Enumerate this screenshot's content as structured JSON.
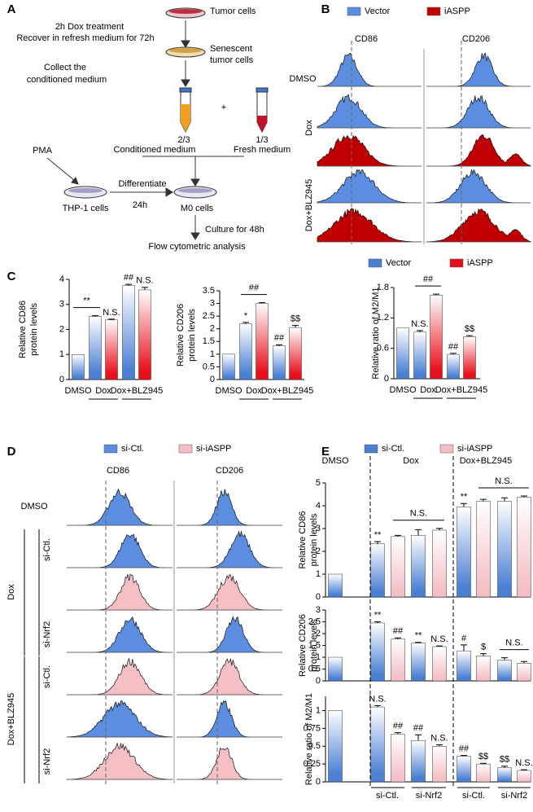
{
  "panel_labels": [
    "A",
    "B",
    "C",
    "D",
    "E"
  ],
  "panel_a": {
    "texts": [
      "Tumor cells",
      "2h Dox treatment",
      "Recover in refresh medium for 72h",
      "Senescent",
      "tumor cells",
      "Collect the",
      "conditioned medium",
      "+",
      "2/3",
      "1/3",
      "Conditioned medium",
      "Fresh medium",
      "PMA",
      "Differentiate",
      "24h",
      "THP-1 cells",
      "M0 cells",
      "Culture for 48h",
      "Flow cytometric analysis"
    ]
  },
  "panel_b": {
    "legend": [
      {
        "name": "Vector",
        "color": "#5b8ee0"
      },
      {
        "name": "iASPP",
        "color": "#c00000"
      }
    ],
    "columns": [
      "CD86",
      "CD206"
    ],
    "rows": [
      "DMSO",
      "Dox",
      "Dox+BLZ945"
    ]
  },
  "panel_c": {
    "legend": [
      {
        "name": "Vector",
        "color": "#4a7fd4"
      },
      {
        "name": "iASPP",
        "color": "#e8101c"
      }
    ]
  },
  "panel_d": {
    "legend": [
      {
        "name": "si-Ctl.",
        "color": "#5b8ee0"
      },
      {
        "name": "si-iASPP",
        "color": "#f4c0c6"
      }
    ],
    "columns": [
      "CD86",
      "CD206"
    ],
    "rows": [
      "DMSO",
      "Dox",
      "Dox+BLZ945"
    ],
    "subrows": [
      "si-Ctl.",
      "si-Nrf2",
      "si-Ctl.",
      "si-Nrf2"
    ]
  },
  "panel_e": {
    "legend": [
      {
        "name": "si-Ctl.",
        "color": "#4a7fd4"
      },
      {
        "name": "si-iASPP",
        "color": "#f4c0c6"
      }
    ]
  },
  "chart_data": [
    {
      "type": "bar",
      "ylabel": [
        "Relative CD86",
        "protein levels"
      ],
      "ylim": [
        0,
        4
      ],
      "yticks": [
        0,
        1,
        2,
        3,
        4
      ],
      "group_labels": [
        "DMSO",
        "Dox",
        "Dox+BLZ945"
      ],
      "series": [
        {
          "color": "#4a7fd4",
          "values": [
            1,
            2.52,
            null,
            3.75,
            null
          ],
          "errors": [
            null,
            0.03,
            null,
            0.05,
            null
          ]
        },
        {
          "color": "#e8101c",
          "values": [
            null,
            null,
            2.38,
            null,
            3.58
          ],
          "errors": [
            null,
            null,
            0.03,
            null,
            0.1
          ]
        }
      ],
      "annotations": [
        "**",
        "N.S.",
        "##",
        "N.S."
      ]
    },
    {
      "type": "bar",
      "ylabel": [
        "Relative CD206",
        "protein levels"
      ],
      "ylim": [
        0,
        3.5
      ],
      "yticks": [
        0,
        0.5,
        1,
        1.5,
        2,
        2.5,
        3,
        3.5
      ],
      "group_labels": [
        "DMSO",
        "Dox",
        "Dox+BLZ945"
      ],
      "series": [
        {
          "color": "#4a7fd4",
          "values": [
            1,
            2.2,
            null,
            1.33,
            null
          ],
          "errors": [
            null,
            0.05,
            null,
            0.04,
            null
          ]
        },
        {
          "color": "#e8101c",
          "values": [
            null,
            null,
            3.0,
            null,
            2.05
          ],
          "errors": [
            null,
            null,
            0.03,
            null,
            0.08
          ]
        }
      ],
      "annotations": [
        "*",
        "##",
        "##",
        "$$"
      ]
    },
    {
      "type": "bar",
      "ylabel": [
        "Relative ratio of M2/M1"
      ],
      "ylim": [
        0,
        1.8
      ],
      "yticks": [
        0,
        0.6,
        1.2,
        1.8
      ],
      "group_labels": [
        "DMSO",
        "Dox",
        "Dox+BLZ945"
      ],
      "series": [
        {
          "color": "#4a7fd4",
          "values": [
            1,
            0.92,
            null,
            0.48,
            null
          ],
          "errors": [
            null,
            0.03,
            null,
            0.02,
            null
          ]
        },
        {
          "color": "#e8101c",
          "values": [
            null,
            null,
            1.65,
            null,
            0.83
          ],
          "errors": [
            null,
            null,
            0.02,
            null,
            0.02
          ]
        }
      ],
      "annotations": [
        "N.S.",
        "##",
        "##",
        "$$"
      ]
    },
    {
      "type": "bar",
      "ylabel": [
        "Relative CD86",
        "protein levels"
      ],
      "ylim": [
        0,
        5
      ],
      "yticks": [
        0,
        1,
        2,
        3,
        4,
        5
      ],
      "group_labels": [
        "DMSO",
        "Dox",
        "Dox+BLZ945"
      ],
      "series": [
        {
          "color": "#4a7fd4",
          "values": [
            1,
            2.33,
            null,
            2.7,
            null,
            3.95,
            null,
            4.2,
            null
          ],
          "errors": [
            null,
            0.1,
            null,
            0.25,
            null,
            0.15,
            null,
            0.15,
            null
          ]
        },
        {
          "color": "#f4c0c6",
          "values": [
            null,
            null,
            2.65,
            null,
            2.93,
            null,
            4.2,
            null,
            4.38
          ],
          "errors": [
            null,
            null,
            0.05,
            null,
            0.08,
            null,
            0.08,
            null,
            0.05
          ]
        }
      ],
      "annotations": [
        "**",
        "N.S.",
        "**",
        "N.S."
      ]
    },
    {
      "type": "bar",
      "ylabel": [
        "Relative CD206",
        "protein levels"
      ],
      "ylim": [
        0,
        3
      ],
      "yticks": [
        0,
        0.5,
        1,
        1.5,
        2,
        2.5,
        3
      ],
      "series": [
        {
          "color": "#4a7fd4",
          "values": [
            1,
            2.45,
            null,
            1.6,
            null,
            1.27,
            null,
            0.88,
            null
          ],
          "errors": [
            null,
            0.05,
            null,
            0.03,
            null,
            0.25,
            null,
            0.1,
            null
          ]
        },
        {
          "color": "#f4c0c6",
          "values": [
            null,
            null,
            1.77,
            null,
            1.45,
            null,
            1.05,
            null,
            0.75
          ],
          "errors": [
            null,
            null,
            0.05,
            null,
            0.03,
            null,
            0.1,
            null,
            0.07
          ]
        }
      ],
      "annotations": [
        "**",
        "##",
        "**",
        "N.S.",
        "#",
        "$",
        "N.S."
      ]
    },
    {
      "type": "bar",
      "ylabel": [
        "Relative ratio of M2/M1"
      ],
      "ylim": [
        0,
        1.2
      ],
      "yticks": [
        0,
        0.25,
        0.5,
        0.75,
        1
      ],
      "x_labels": [
        "si-Ctl.",
        "si-Nrf2",
        "si-Ctl.",
        "si-Nrf2"
      ],
      "series": [
        {
          "color": "#4a7fd4",
          "values": [
            1,
            1.05,
            null,
            0.58,
            null,
            0.36,
            null,
            0.2,
            null
          ],
          "errors": [
            null,
            0.02,
            null,
            0.08,
            null,
            0.01,
            null,
            0.02,
            null
          ]
        },
        {
          "color": "#f4c0c6",
          "values": [
            null,
            null,
            0.67,
            null,
            0.5,
            null,
            0.25,
            null,
            0.16
          ],
          "errors": [
            null,
            null,
            0.02,
            null,
            0.02,
            null,
            0.01,
            null,
            0.01
          ]
        }
      ],
      "annotations": [
        "N.S.",
        "##",
        "##",
        "N.S.",
        "##",
        "$$",
        "$$",
        "N.S."
      ]
    }
  ]
}
